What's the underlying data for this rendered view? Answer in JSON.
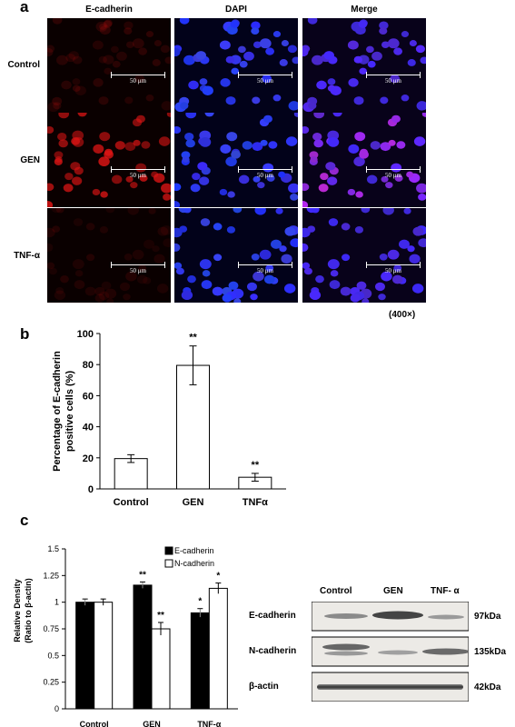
{
  "panel_a": {
    "letter": "a",
    "columns": [
      "E-cadherin",
      "DAPI",
      "Merge"
    ],
    "rows": [
      "Control",
      "GEN",
      "TNF-α"
    ],
    "scale_bar": "50 μm",
    "magnification": "(400×)"
  },
  "panel_b": {
    "letter": "b"
  },
  "panel_c": {
    "letter": "c"
  },
  "western_blot": {
    "lanes": [
      "Control",
      "GEN",
      "TNF- α"
    ],
    "proteins": [
      "E-cadherin",
      "N-cadherin",
      "β-actin"
    ],
    "sizes": [
      "97kDa",
      "135kDa",
      "42kDa"
    ]
  },
  "chart_data": [
    {
      "type": "bar",
      "ylabel": "Percentage of E-cadherin positive cells (%)",
      "categories": [
        "Control",
        "GEN",
        "TNFα"
      ],
      "values": [
        19.5,
        79.5,
        7.5
      ],
      "errors": [
        2.5,
        12.5,
        2.5
      ],
      "significance": [
        "",
        "**",
        "**"
      ],
      "ylim": [
        0,
        100
      ],
      "yticks": [
        0,
        20,
        40,
        60,
        80,
        100
      ]
    },
    {
      "type": "bar",
      "ylabel": "Relative Density (Ratio to β-actin)",
      "categories": [
        "Control",
        "GEN",
        "TNF-α"
      ],
      "series": [
        {
          "name": "E-cadherin",
          "values": [
            1.0,
            1.16,
            0.9
          ],
          "errors": [
            0.03,
            0.03,
            0.04
          ],
          "significance": [
            "",
            "**",
            "*"
          ],
          "color": "#000000"
        },
        {
          "name": "N-cadherin",
          "values": [
            1.0,
            0.75,
            1.13
          ],
          "errors": [
            0.03,
            0.06,
            0.05
          ],
          "significance": [
            "",
            "**",
            "*"
          ],
          "color": "#ffffff"
        }
      ],
      "ylim": [
        0,
        1.5
      ],
      "yticks": [
        "0",
        "0.25",
        "0.5",
        "0.75",
        "1",
        "1.25",
        "1.5"
      ]
    }
  ]
}
